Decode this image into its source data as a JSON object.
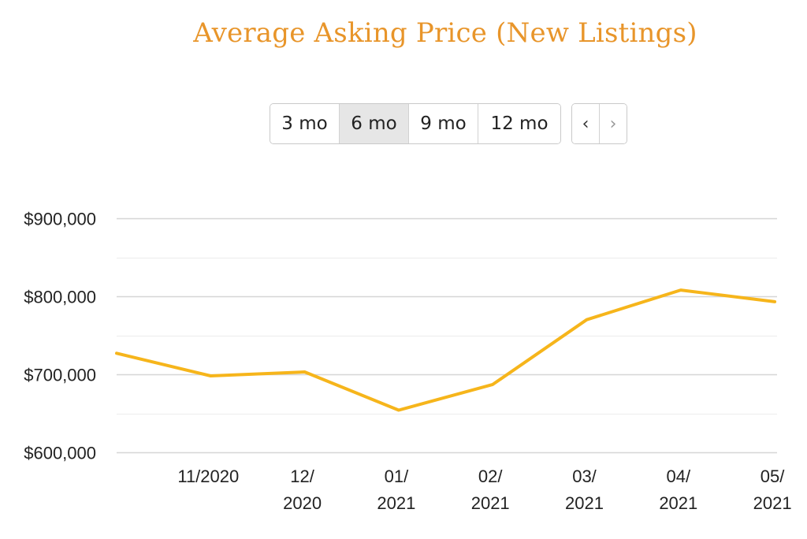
{
  "title": "Average Asking Price (New Listings)",
  "range_buttons": [
    {
      "label": "3 mo",
      "active": false
    },
    {
      "label": "6 mo",
      "active": true
    },
    {
      "label": "9 mo",
      "active": false
    },
    {
      "label": "12 mo",
      "active": false
    }
  ],
  "nav": {
    "prev": "‹",
    "next": "›"
  },
  "colors": {
    "title": "#e8952a",
    "line": "#f6b51b",
    "grid": "#d6d6d6"
  },
  "chart_data": {
    "type": "line",
    "x_tick_labels": [
      [
        "11/2020"
      ],
      [
        "12/",
        "2020"
      ],
      [
        "01/",
        "2021"
      ],
      [
        "02/",
        "2021"
      ],
      [
        "03/",
        "2021"
      ],
      [
        "04/",
        "2021"
      ],
      [
        "05/",
        "2021"
      ]
    ],
    "y_tick_labels": [
      "$900,000",
      "$800,000",
      "$700,000",
      "$600,000"
    ],
    "y_ticks": [
      900000,
      800000,
      700000,
      600000
    ],
    "ylim": [
      600000,
      900000
    ],
    "grid": true,
    "series": [
      {
        "x": [
          "10/2020",
          "11/2020",
          "12/2020",
          "01/2021",
          "02/2021",
          "03/2021",
          "04/2021",
          "05/2021"
        ],
        "values": [
          727000,
          698000,
          703000,
          654000,
          687000,
          770000,
          808000,
          793000
        ]
      }
    ]
  }
}
